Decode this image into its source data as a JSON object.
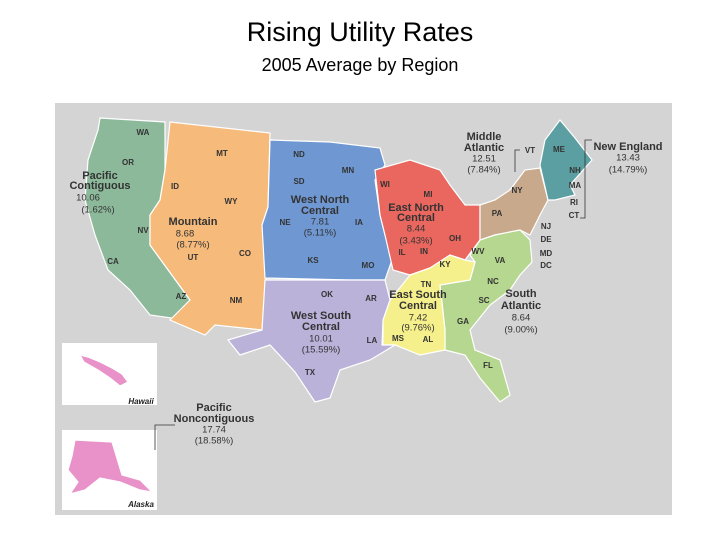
{
  "header": {
    "title": "Rising Utility Rates",
    "subtitle": "2005 Average by Region"
  },
  "regions": [
    {
      "name": [
        "Pacific",
        "Contiguous"
      ],
      "value": 10.06,
      "change": "(1.62%)",
      "color": "#8db99b",
      "states": [
        "WA",
        "OR",
        "CA"
      ]
    },
    {
      "name": [
        "Mountain"
      ],
      "value": 8.68,
      "change": "(8.77%)",
      "color": "#f6ba7b",
      "states": [
        "MT",
        "ID",
        "WY",
        "NV",
        "UT",
        "CO",
        "AZ",
        "NM"
      ]
    },
    {
      "name": [
        "West North",
        "Central"
      ],
      "value": 7.81,
      "change": "(5.11%)",
      "color": "#6f97d2",
      "states": [
        "ND",
        "SD",
        "MN",
        "NE",
        "IA",
        "KS",
        "MO"
      ]
    },
    {
      "name": [
        "East North",
        "Central"
      ],
      "value": 8.44,
      "change": "(3.43%)",
      "color": "#e9675f",
      "states": [
        "WI",
        "MI",
        "IL",
        "IN",
        "OH"
      ]
    },
    {
      "name": [
        "Middle",
        "Atlantic"
      ],
      "value": 12.51,
      "change": "(7.84%)",
      "color": "#c8a98c",
      "states": [
        "NY",
        "PA",
        "NJ"
      ]
    },
    {
      "name": [
        "New England"
      ],
      "value": 13.43,
      "change": "(14.79%)",
      "color": "#5c9fa2",
      "states": [
        "VT",
        "ME",
        "NH",
        "MA",
        "RI",
        "CT"
      ]
    },
    {
      "name": [
        "South",
        "Atlantic"
      ],
      "value": 8.64,
      "change": "(9.00%)",
      "color": "#b6d78f",
      "states": [
        "WV",
        "VA",
        "NC",
        "SC",
        "GA",
        "FL",
        "DE",
        "MD",
        "DC"
      ]
    },
    {
      "name": [
        "East South",
        "Central"
      ],
      "value": 7.42,
      "change": "(9.76%)",
      "color": "#f6f08c",
      "states": [
        "TN",
        "KY",
        "MS",
        "AL"
      ]
    },
    {
      "name": [
        "West South",
        "Central"
      ],
      "value": 10.01,
      "change": "(15.59%)",
      "color": "#bab2d9",
      "states": [
        "OK",
        "AR",
        "LA",
        "TX"
      ]
    },
    {
      "name": [
        "Pacific",
        "Noncontiguous"
      ],
      "value": 17.74,
      "change": "(18.58%)",
      "color": "#e991c9"
    }
  ],
  "insets": [
    "Hawaii",
    "Alaska"
  ]
}
